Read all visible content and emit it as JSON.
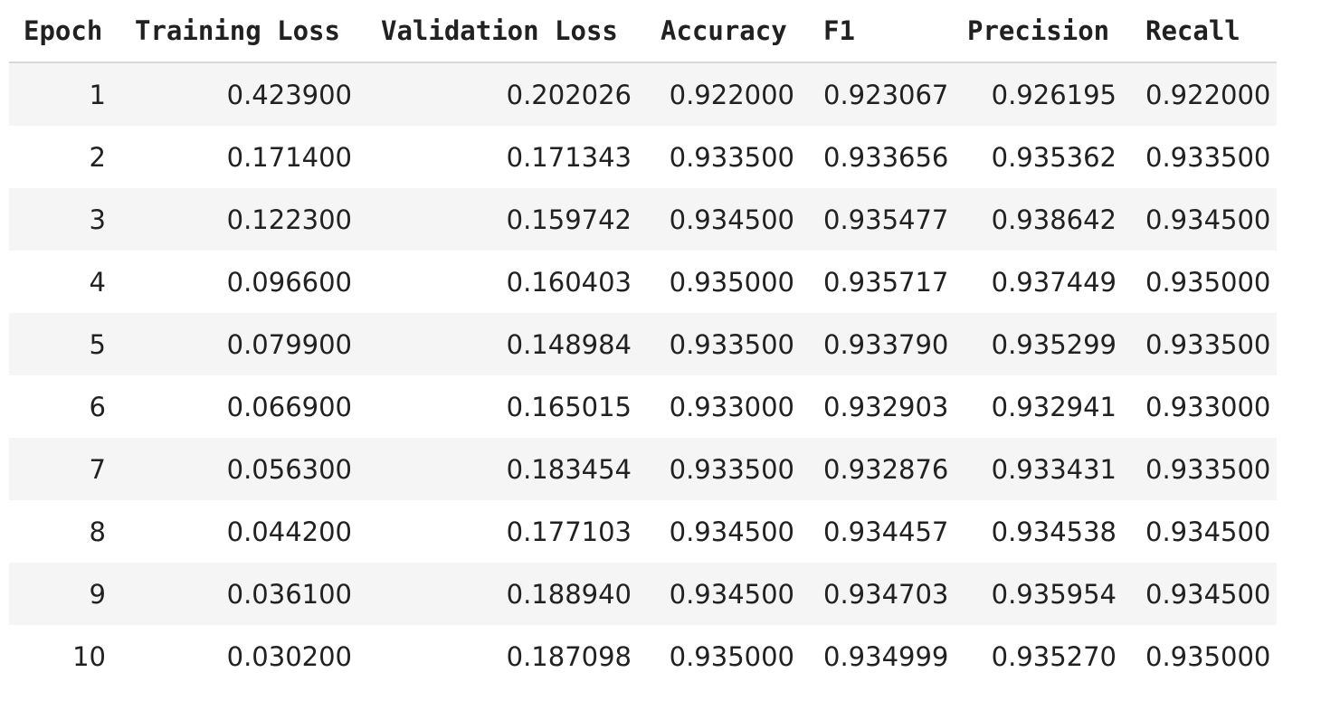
{
  "table": {
    "columns": [
      "Epoch",
      "Training Loss",
      "Validation Loss",
      "Accuracy",
      "F1",
      "Precision",
      "Recall"
    ],
    "rows": [
      [
        "1",
        "0.423900",
        "0.202026",
        "0.922000",
        "0.923067",
        "0.926195",
        "0.922000"
      ],
      [
        "2",
        "0.171400",
        "0.171343",
        "0.933500",
        "0.933656",
        "0.935362",
        "0.933500"
      ],
      [
        "3",
        "0.122300",
        "0.159742",
        "0.934500",
        "0.935477",
        "0.938642",
        "0.934500"
      ],
      [
        "4",
        "0.096600",
        "0.160403",
        "0.935000",
        "0.935717",
        "0.937449",
        "0.935000"
      ],
      [
        "5",
        "0.079900",
        "0.148984",
        "0.933500",
        "0.933790",
        "0.935299",
        "0.933500"
      ],
      [
        "6",
        "0.066900",
        "0.165015",
        "0.933000",
        "0.932903",
        "0.932941",
        "0.933000"
      ],
      [
        "7",
        "0.056300",
        "0.183454",
        "0.933500",
        "0.932876",
        "0.933431",
        "0.933500"
      ],
      [
        "8",
        "0.044200",
        "0.177103",
        "0.934500",
        "0.934457",
        "0.934538",
        "0.934500"
      ],
      [
        "9",
        "0.036100",
        "0.188940",
        "0.934500",
        "0.934703",
        "0.935954",
        "0.934500"
      ],
      [
        "10",
        "0.030200",
        "0.187098",
        "0.935000",
        "0.934999",
        "0.935270",
        "0.935000"
      ]
    ]
  }
}
